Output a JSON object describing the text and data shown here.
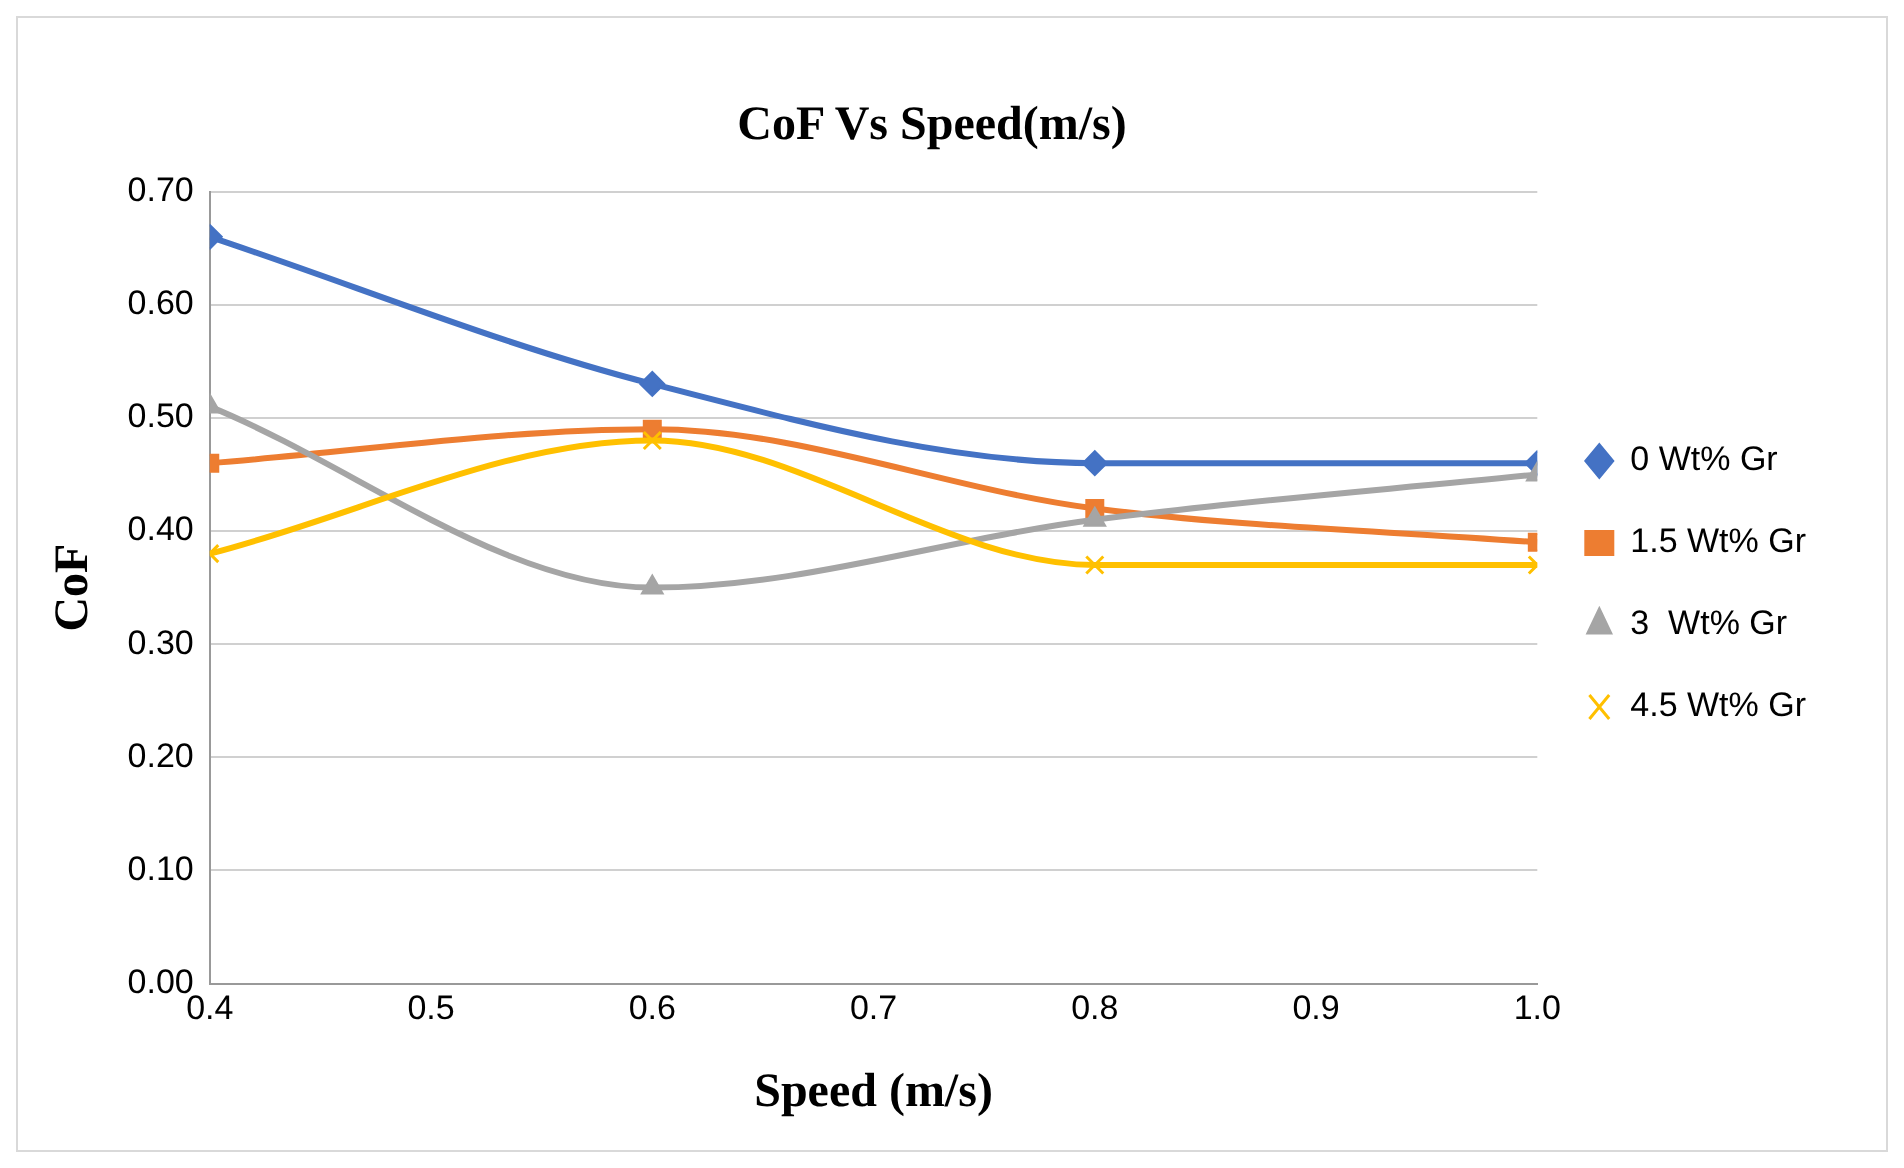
{
  "chart_data": {
    "type": "line",
    "title": "CoF Vs Speed(m/s)",
    "xlabel": "Speed (m/s)",
    "ylabel": "CoF",
    "x": [
      0.4,
      0.6,
      0.8,
      1.0
    ],
    "series": [
      {
        "name": "0 Wt% Gr",
        "color": "#4472c4",
        "marker": "diamond",
        "values": [
          0.66,
          0.53,
          0.46,
          0.46
        ]
      },
      {
        "name": "1.5 Wt% Gr",
        "color": "#ed7d31",
        "marker": "square",
        "values": [
          0.46,
          0.49,
          0.42,
          0.39
        ]
      },
      {
        "name": "3  Wt% Gr",
        "color": "#a5a5a5",
        "marker": "triangle",
        "values": [
          0.51,
          0.35,
          0.41,
          0.45
        ]
      },
      {
        "name": "4.5 Wt% Gr",
        "color": "#ffc000",
        "marker": "cross",
        "values": [
          0.38,
          0.48,
          0.37,
          0.37
        ]
      }
    ],
    "xlim": [
      0.4,
      1.0
    ],
    "xticks": [
      0.4,
      0.5,
      0.6,
      0.7,
      0.8,
      0.9,
      {
        "value": 1.0,
        "label": "1.0"
      }
    ],
    "ylim": [
      0,
      0.7
    ],
    "yticks": [
      {
        "value": 0,
        "label": "0.00"
      },
      {
        "value": 0.1,
        "label": "0.10"
      },
      {
        "value": 0.2,
        "label": "0.20"
      },
      {
        "value": 0.3,
        "label": "0.30"
      },
      {
        "value": 0.4,
        "label": "0.40"
      },
      {
        "value": 0.5,
        "label": "0.50"
      },
      {
        "value": 0.6,
        "label": "0.60"
      },
      {
        "value": 0.7,
        "label": "0.70"
      }
    ],
    "grid": "y",
    "legend": "right"
  }
}
